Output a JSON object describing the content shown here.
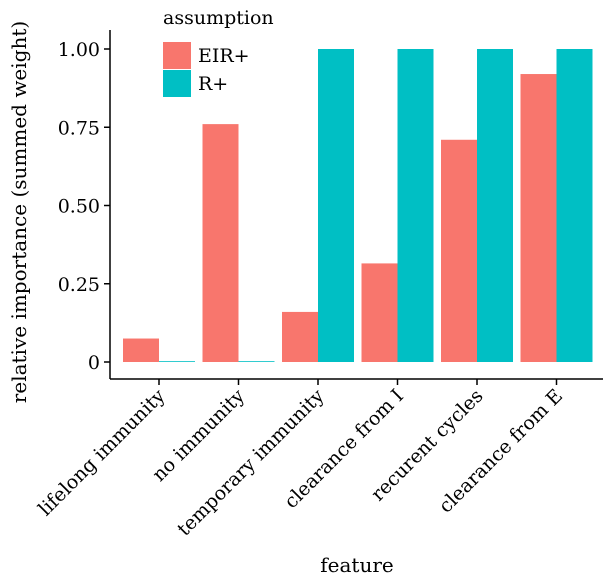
{
  "chart_data": {
    "type": "bar",
    "xlabel": "feature",
    "ylabel": "relative importance (summed weight)",
    "ylim": [
      0,
      1
    ],
    "yticks": [
      0,
      0.25,
      0.5,
      0.75,
      1.0
    ],
    "ytick_labels": [
      "0",
      "0.25",
      "0.50",
      "0.75",
      "1.00"
    ],
    "categories": [
      "lifelong immunity",
      "no immunity",
      "temporary immunity",
      "clearance from I",
      "recurent cycles",
      "clearance from E"
    ],
    "legend": {
      "title": "assumption",
      "placement": "top-left"
    },
    "series": [
      {
        "name": "EIR+",
        "color": "#F8766D",
        "values": [
          0.075,
          0.76,
          0.16,
          0.315,
          0.71,
          0.92
        ]
      },
      {
        "name": "R+",
        "color": "#00BFC4",
        "values": [
          0.0,
          0.0,
          1.0,
          1.0,
          1.0,
          1.0
        ]
      }
    ],
    "grid": false
  }
}
